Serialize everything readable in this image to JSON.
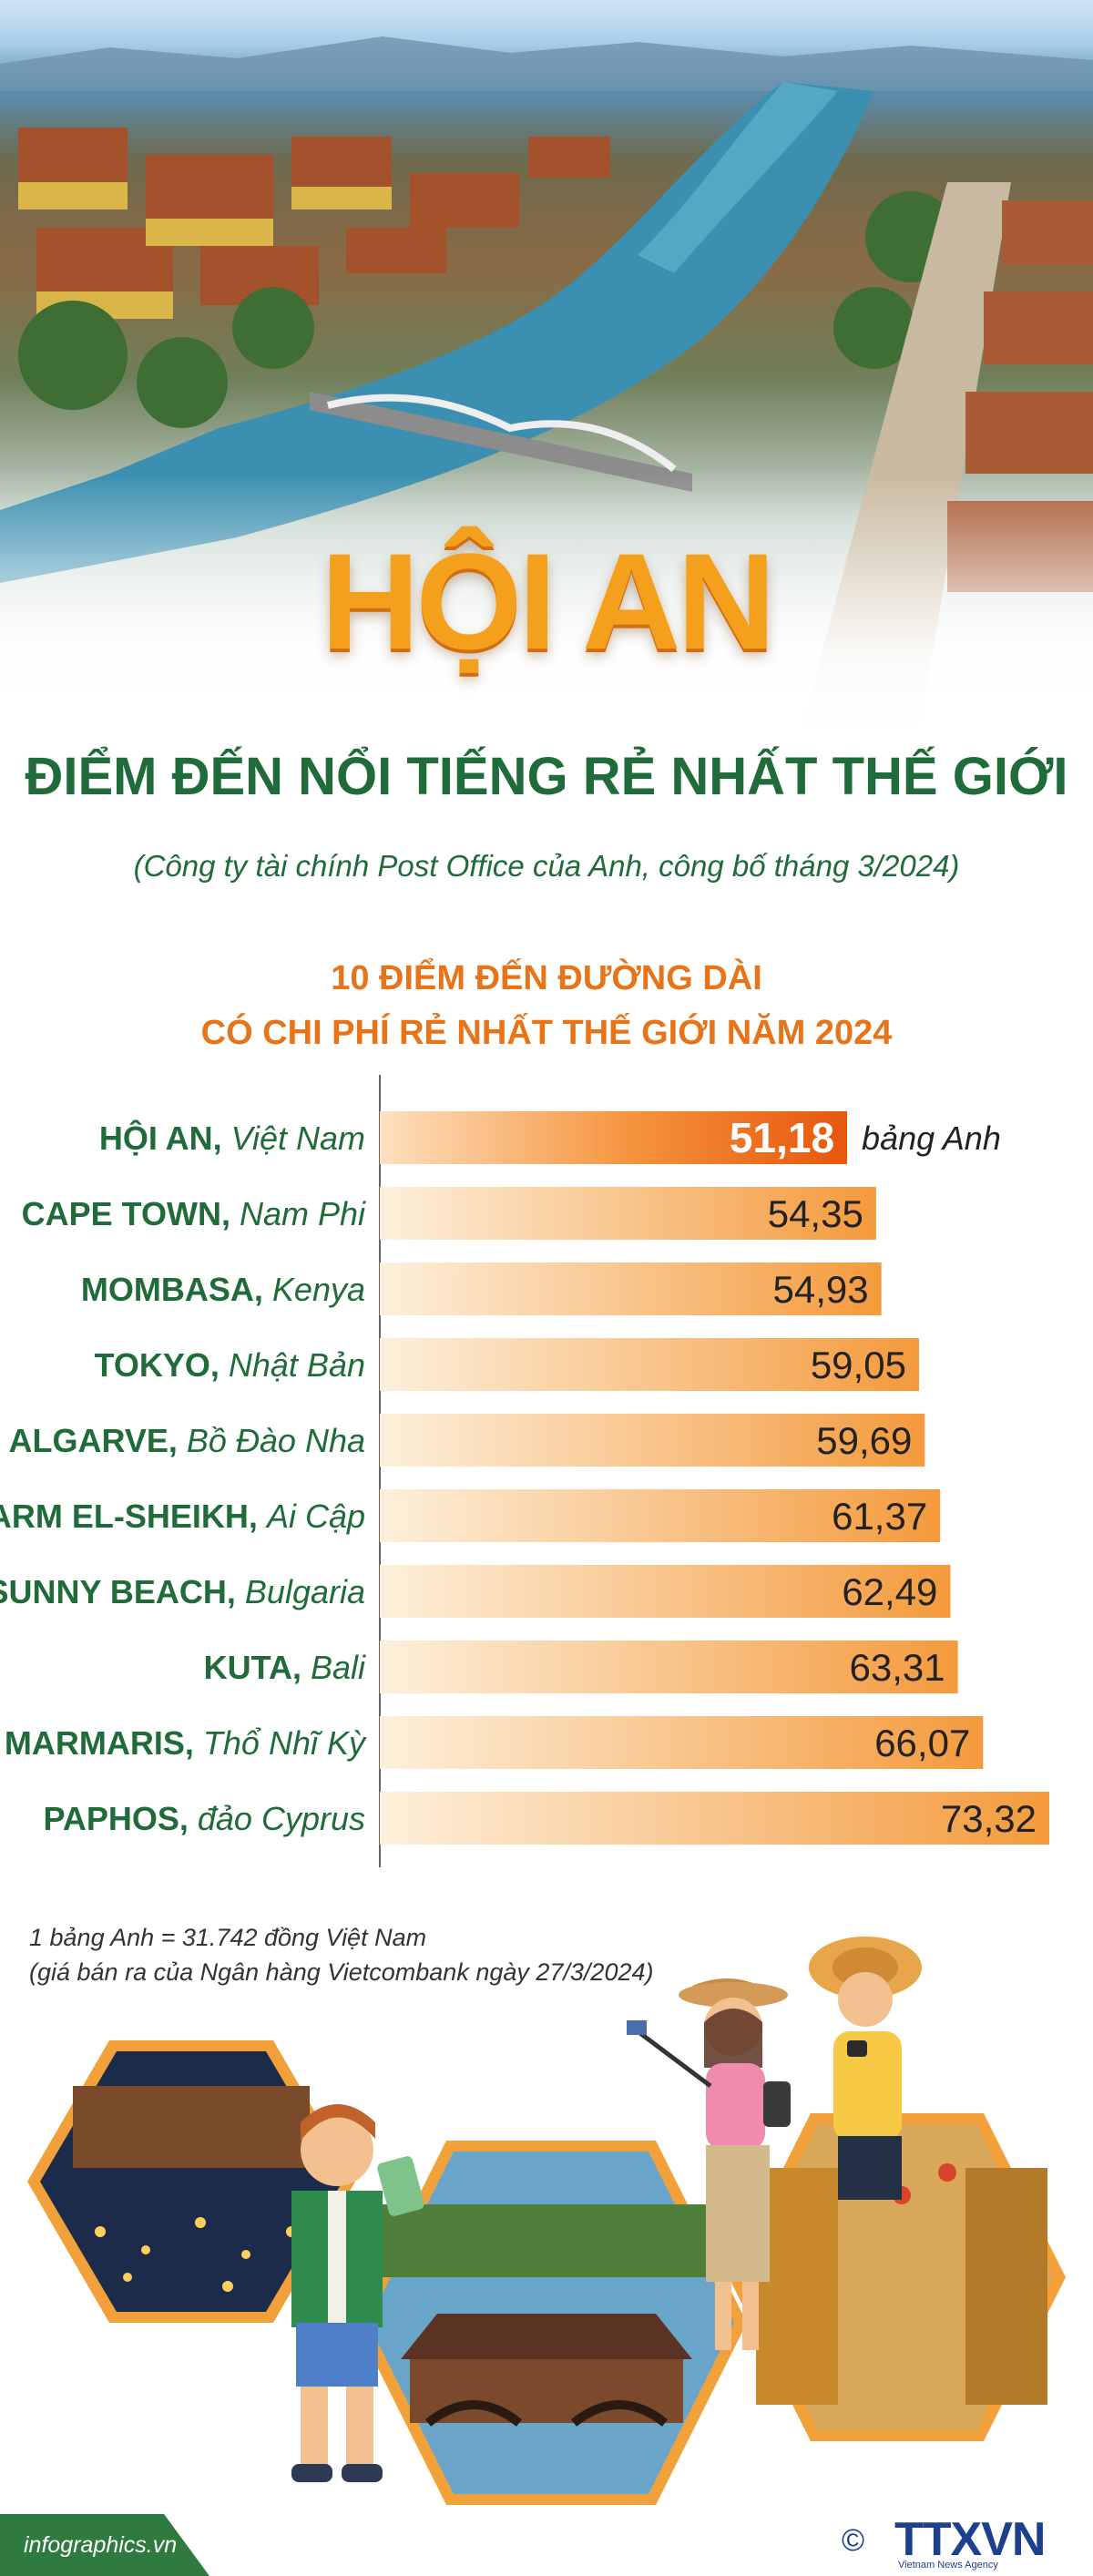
{
  "title": "HỘI AN",
  "subtitle": "ĐIỂM ĐẾN NỔI TIẾNG RẺ NHẤT THẾ GIỚI",
  "source": "(Công ty tài chính Post Office của Anh, công bố tháng 3/2024)",
  "chart_data": {
    "type": "bar",
    "orientation": "horizontal",
    "title_lines": [
      "10 ĐIỂM ĐẾN ĐƯỜNG DÀI",
      "CÓ CHI PHÍ RẺ NHẤT THẾ GIỚI NĂM 2024"
    ],
    "categories": [
      {
        "name": "HỘI AN",
        "country": "Việt Nam"
      },
      {
        "name": "CAPE TOWN",
        "country": "Nam Phi"
      },
      {
        "name": "MOMBASA",
        "country": "Kenya"
      },
      {
        "name": "TOKYO",
        "country": "Nhật Bản"
      },
      {
        "name": "ALGARVE",
        "country": "Bồ Đào Nha"
      },
      {
        "name": "SHARM EL-SHEIKH",
        "country": "Ai Cập"
      },
      {
        "name": "SUNNY BEACH",
        "country": "Bulgaria"
      },
      {
        "name": "KUTA",
        "country": "Bali"
      },
      {
        "name": "MARMARIS",
        "country": "Thổ Nhĩ Kỳ"
      },
      {
        "name": "PAPHOS",
        "country": "đảo Cyprus"
      }
    ],
    "values": [
      51.18,
      54.35,
      54.93,
      59.05,
      59.69,
      61.37,
      62.49,
      63.31,
      66.07,
      73.32
    ],
    "value_labels": [
      "51,18",
      "54,35",
      "54,93",
      "59,05",
      "59,69",
      "61,37",
      "62,49",
      "63,31",
      "66,07",
      "73,32"
    ],
    "unit": "bảng Anh",
    "highlight_index": 0,
    "colors": {
      "highlight": "#ee6a12",
      "bar_start": "#fdf0dc",
      "bar_end": "#f49a3c",
      "label": "#1f6b3a"
    }
  },
  "footnote": {
    "line1": "1 bảng Anh = 31.742 đồng Việt Nam",
    "line2": "(giá bán ra của Ngân hàng Vietcombank ngày 27/3/2024)"
  },
  "footer": {
    "site": "infographics.vn",
    "copyright": "©",
    "logo": "TTXVN",
    "logo_sub": "Vietnam News Agency"
  },
  "colors": {
    "title": "#f5a01c",
    "green": "#1f6b3a",
    "orange": "#e8741a",
    "footer_band": "#2f7a3e"
  }
}
